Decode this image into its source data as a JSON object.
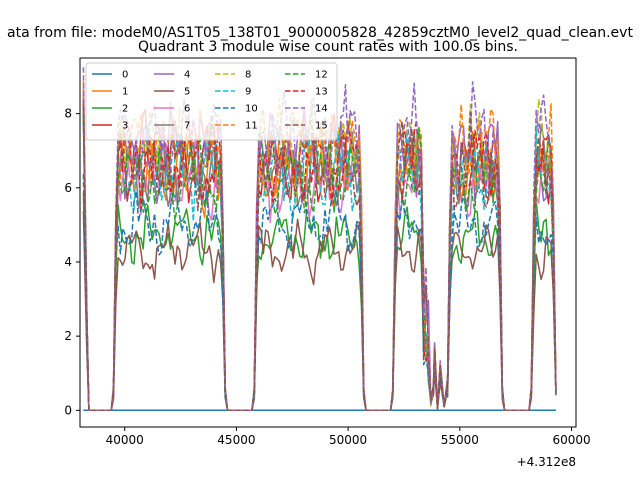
{
  "suptitle": "ata from file: modeM0/AS1T05_138T01_9000005828_42859cztM0_level2_quad_clean.evt",
  "chart_data": {
    "type": "line",
    "title": "Quadrant 3 module wise count rates with 100.0s bins.",
    "xlabel": "",
    "ylabel": "",
    "xlim": [
      38000,
      60200
    ],
    "ylim": [
      -0.45,
      9.5
    ],
    "x_offset_label": "+4.312e8",
    "xticks": [
      40000,
      45000,
      50000,
      55000,
      60000
    ],
    "xtick_labels": [
      "40000",
      "45000",
      "50000",
      "55000",
      "60000"
    ],
    "yticks": [
      0,
      2,
      4,
      6,
      8
    ],
    "ytick_labels": [
      "0",
      "2",
      "4",
      "6",
      "8"
    ],
    "grid": false,
    "legend": {
      "placement": "top-left",
      "columns": 4
    },
    "observation_windows": [
      [
        38150,
        39500
      ],
      [
        39500,
        44500
      ],
      [
        44500,
        45800
      ],
      [
        45800,
        50700
      ],
      [
        50700,
        52000
      ],
      [
        52000,
        53700
      ],
      [
        53700,
        54450
      ],
      [
        54450,
        56900
      ],
      [
        56900,
        58200
      ],
      [
        58200,
        59300
      ]
    ],
    "series": [
      {
        "name": "0",
        "color": "#1f77b4",
        "dash": "solid",
        "level": 0.0,
        "x": [
          38150,
          59300
        ],
        "y": [
          0,
          0
        ]
      },
      {
        "name": "1",
        "color": "#ff7f0e",
        "dash": "solid",
        "level": 6.6
      },
      {
        "name": "2",
        "color": "#2ca02c",
        "dash": "solid",
        "level": 4.7
      },
      {
        "name": "3",
        "color": "#d62728",
        "dash": "solid",
        "level": 6.8
      },
      {
        "name": "4",
        "color": "#9467bd",
        "dash": "solid",
        "level": 6.9
      },
      {
        "name": "5",
        "color": "#8c564b",
        "dash": "solid",
        "level": 4.3
      },
      {
        "name": "6",
        "color": "#e377c2",
        "dash": "solid",
        "level": 6.2
      },
      {
        "name": "7",
        "color": "#7f7f7f",
        "dash": "solid",
        "level": 6.5
      },
      {
        "name": "8",
        "color": "#bcbd22",
        "dash": "dashed",
        "level": 7.0
      },
      {
        "name": "9",
        "color": "#17becf",
        "dash": "dashed",
        "level": 6.4
      },
      {
        "name": "10",
        "color": "#1f77b4",
        "dash": "dashed",
        "level": 5.1
      },
      {
        "name": "11",
        "color": "#ff7f0e",
        "dash": "dashed",
        "level": 7.1
      },
      {
        "name": "12",
        "color": "#2ca02c",
        "dash": "dashed",
        "level": 6.3
      },
      {
        "name": "13",
        "color": "#d62728",
        "dash": "dashed",
        "level": 6.7
      },
      {
        "name": "14",
        "color": "#9467bd",
        "dash": "dashed",
        "level": 7.4
      },
      {
        "name": "15",
        "color": "#8c564b",
        "dash": "dashed",
        "level": 6.6
      }
    ]
  }
}
